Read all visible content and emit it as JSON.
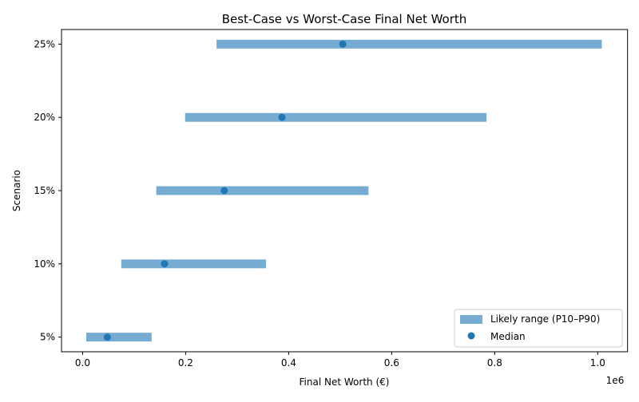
{
  "chart_data": {
    "type": "range-bar",
    "title": "Best-Case vs Worst-Case Final Net Worth",
    "xlabel": "Final Net Worth (€)",
    "ylabel": "Scenario",
    "x_offset_label": "1e6",
    "xlim": [
      -0.041,
      1.058
    ],
    "x_ticks": [
      0.0,
      0.2,
      0.4,
      0.6,
      0.8,
      1.0
    ],
    "x_tick_labels": [
      "0.0",
      "0.2",
      "0.4",
      "0.6",
      "0.8",
      "1.0"
    ],
    "categories": [
      "5%",
      "10%",
      "15%",
      "20%",
      "25%"
    ],
    "series": [
      {
        "name": "Likely range (P10–P90)",
        "kind": "range",
        "color": "#76acd2",
        "low": [
          0.007,
          0.075,
          0.143,
          0.199,
          0.26
        ],
        "high": [
          0.134,
          0.356,
          0.555,
          0.784,
          1.008
        ]
      },
      {
        "name": "Median",
        "kind": "point",
        "color": "#1f77b4",
        "values": [
          0.048,
          0.159,
          0.275,
          0.387,
          0.505
        ]
      }
    ],
    "grid": false,
    "legend": "lower-right"
  }
}
